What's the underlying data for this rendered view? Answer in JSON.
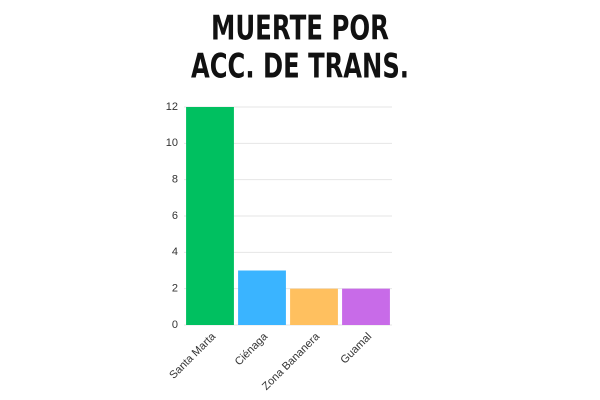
{
  "chart_data": {
    "type": "bar",
    "title": [
      "MUERTE POR",
      "ACC. DE TRANS."
    ],
    "categories": [
      "Santa Marta",
      "Ciénaga",
      "Zona Bananera",
      "Guamal"
    ],
    "values": [
      12,
      3,
      2,
      2
    ],
    "colors": [
      "#00c060",
      "#3ab4ff",
      "#ffc05f",
      "#c86be8"
    ],
    "ylim": [
      0,
      12
    ],
    "yticks": [
      0,
      2,
      4,
      6,
      8,
      10,
      12
    ],
    "grid": true
  }
}
